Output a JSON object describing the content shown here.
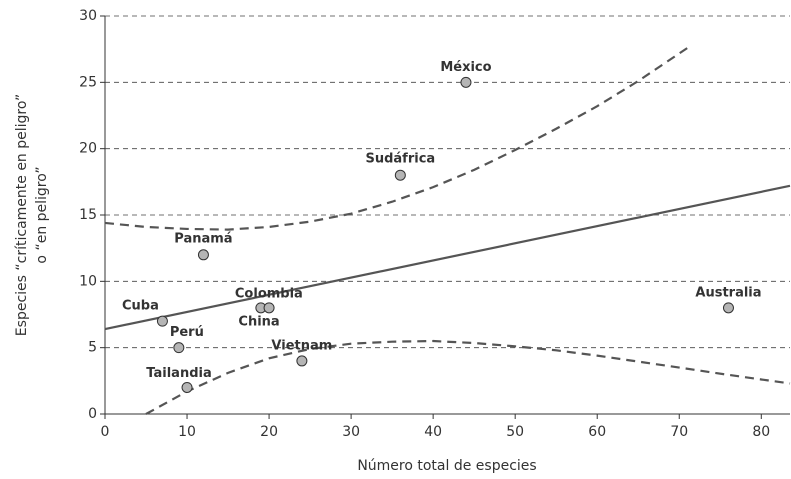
{
  "chart_data": {
    "type": "scatter",
    "xlabel": "Número total de especies",
    "ylabel": [
      "Especies “críticamente en peligro”",
      "o “en peligro”"
    ],
    "xlim": [
      0,
      83.5
    ],
    "ylim": [
      0,
      30
    ],
    "xticks": [
      0,
      10,
      20,
      30,
      40,
      50,
      60,
      70,
      80
    ],
    "yticks": [
      0,
      5,
      10,
      15,
      20,
      25,
      30
    ],
    "grid": true,
    "points": {
      "color": "#b5b5b5",
      "labels": [
        "Cuba",
        "Perú",
        "Tailandia",
        "Panamá",
        "Colombia",
        "China",
        "Vietnam",
        "Sudáfrica",
        "México",
        "Australia"
      ],
      "x": [
        7,
        9,
        10,
        12,
        19,
        20,
        24,
        36,
        44,
        76
      ],
      "y": [
        7,
        5,
        2,
        12,
        8,
        8,
        4,
        18,
        25,
        8
      ]
    },
    "fit": {
      "color": "#555555",
      "x": [
        0,
        83.5
      ],
      "y": [
        6.4,
        17.2
      ]
    },
    "upper_band": {
      "color": "#555555",
      "x": [
        0,
        5,
        10,
        15,
        20,
        25,
        30,
        35,
        40,
        45,
        50,
        55,
        60,
        65,
        71.5
      ],
      "y": [
        14.4,
        14.1,
        13.95,
        13.9,
        14.1,
        14.5,
        15.1,
        16.0,
        17.1,
        18.4,
        19.9,
        21.5,
        23.2,
        25.1,
        27.8
      ]
    },
    "lower_band": {
      "color": "#555555",
      "x": [
        5,
        10,
        15,
        20,
        25,
        30,
        35,
        40,
        45,
        50,
        55,
        60,
        65,
        70,
        76,
        83.5
      ],
      "y": [
        0,
        1.7,
        3.1,
        4.2,
        4.9,
        5.3,
        5.45,
        5.5,
        5.35,
        5.1,
        4.8,
        4.4,
        3.95,
        3.5,
        2.95,
        2.3
      ]
    }
  }
}
